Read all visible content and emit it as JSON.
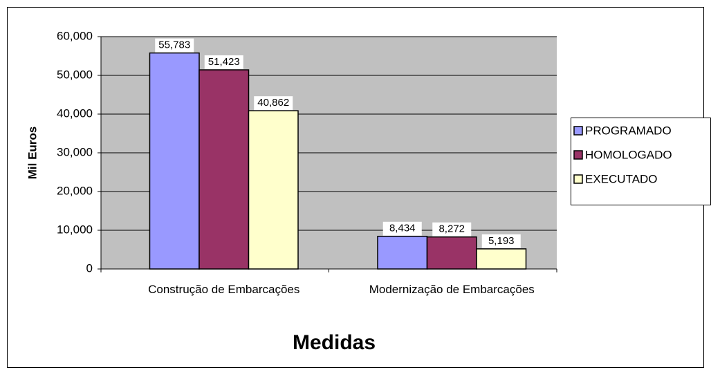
{
  "chart_data": {
    "type": "bar",
    "categories": [
      "Construção de Embarcações",
      "Modernização de Embarcações"
    ],
    "series": [
      {
        "name": "PROGRAMADO",
        "color": "#9999ff",
        "values": [
          55783,
          8434
        ],
        "value_labels": [
          "55,783",
          "8,434"
        ]
      },
      {
        "name": "HOMOLOGADO",
        "color": "#993366",
        "values": [
          51423,
          8272
        ],
        "value_labels": [
          "51,423",
          "8,272"
        ]
      },
      {
        "name": "EXECUTADO",
        "color": "#ffffcc",
        "values": [
          40862,
          5193
        ],
        "value_labels": [
          "40,862",
          "5,193"
        ]
      }
    ],
    "y_label": "Mil Euros",
    "x_label": "Medidas",
    "ylim": [
      0,
      60000
    ],
    "yticks": [
      0,
      {
        "value": 10000,
        "label": "10,000"
      },
      {
        "value": 20000,
        "label": "20,000"
      },
      {
        "value": 30000,
        "label": "30,000"
      },
      {
        "value": 40000,
        "label": "40,000"
      },
      {
        "value": 50000,
        "label": "50,000"
      },
      {
        "value": 60000,
        "label": "60,000"
      }
    ],
    "grid": true,
    "legend": "right"
  }
}
